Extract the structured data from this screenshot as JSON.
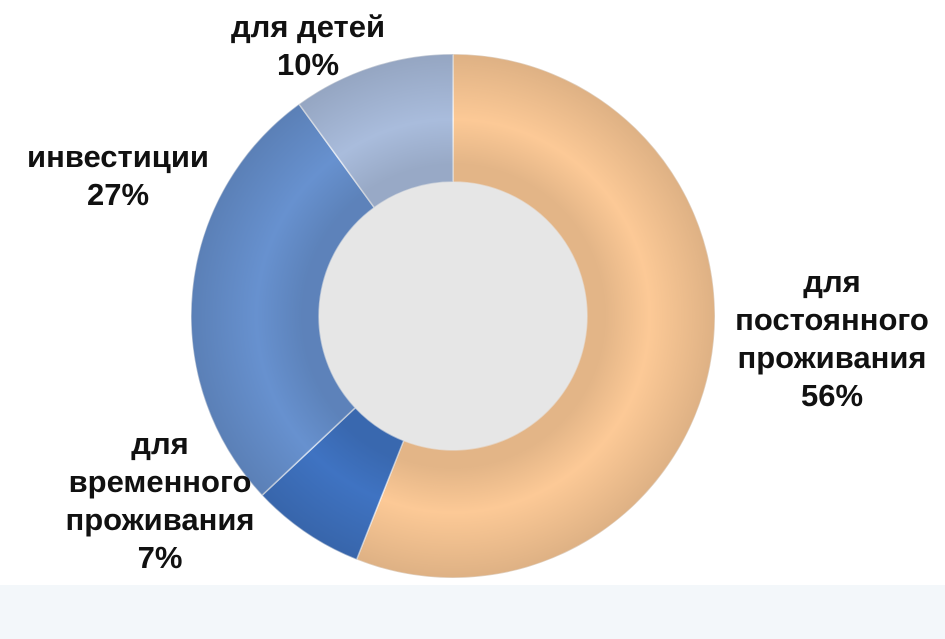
{
  "chart_data": {
    "type": "pie",
    "variant": "donut",
    "title": "",
    "legend": "none",
    "slices": [
      {
        "label_lines": [
          "для",
          "постоянного",
          "проживания"
        ],
        "value": 56,
        "value_label": "56%",
        "color": "#fcc996"
      },
      {
        "label_lines": [
          "для",
          "временного",
          "проживания"
        ],
        "value": 7,
        "value_label": "7%",
        "color": "#3f73c2"
      },
      {
        "label_lines": [
          "инвестиции"
        ],
        "value": 27,
        "value_label": "27%",
        "color": "#6791cf"
      },
      {
        "label_lines": [
          "для детей"
        ],
        "value": 10,
        "value_label": "10%",
        "color": "#a9bcdc"
      }
    ]
  }
}
